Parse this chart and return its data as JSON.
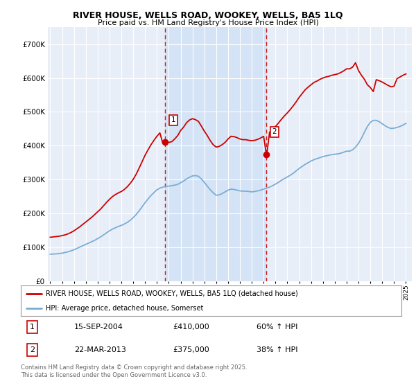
{
  "title": "RIVER HOUSE, WELLS ROAD, WOOKEY, WELLS, BA5 1LQ",
  "subtitle": "Price paid vs. HM Land Registry's House Price Index (HPI)",
  "background_color": "#ffffff",
  "plot_bg_color": "#e8eef8",
  "grid_color": "#ffffff",
  "hpi_line_color": "#7aadd4",
  "property_line_color": "#cc0000",
  "shade_color": "#d4e3f5",
  "sale1_date_num": 2004.71,
  "sale2_date_num": 2013.22,
  "sale1_price": 410000,
  "sale2_price": 375000,
  "sale1_label": "15-SEP-2004",
  "sale2_label": "22-MAR-2013",
  "sale1_pct": "60% ↑ HPI",
  "sale2_pct": "38% ↑ HPI",
  "legend_property": "RIVER HOUSE, WELLS ROAD, WOOKEY, WELLS, BA5 1LQ (detached house)",
  "legend_hpi": "HPI: Average price, detached house, Somerset",
  "footer": "Contains HM Land Registry data © Crown copyright and database right 2025.\nThis data is licensed under the Open Government Licence v3.0.",
  "ylim": [
    0,
    750000
  ],
  "xlim": [
    1994.8,
    2025.5
  ],
  "hpi_data_x": [
    1995.0,
    1995.25,
    1995.5,
    1995.75,
    1996.0,
    1996.25,
    1996.5,
    1996.75,
    1997.0,
    1997.25,
    1997.5,
    1997.75,
    1998.0,
    1998.25,
    1998.5,
    1998.75,
    1999.0,
    1999.25,
    1999.5,
    1999.75,
    2000.0,
    2000.25,
    2000.5,
    2000.75,
    2001.0,
    2001.25,
    2001.5,
    2001.75,
    2002.0,
    2002.25,
    2002.5,
    2002.75,
    2003.0,
    2003.25,
    2003.5,
    2003.75,
    2004.0,
    2004.25,
    2004.5,
    2004.75,
    2005.0,
    2005.25,
    2005.5,
    2005.75,
    2006.0,
    2006.25,
    2006.5,
    2006.75,
    2007.0,
    2007.25,
    2007.5,
    2007.75,
    2008.0,
    2008.25,
    2008.5,
    2008.75,
    2009.0,
    2009.25,
    2009.5,
    2009.75,
    2010.0,
    2010.25,
    2010.5,
    2010.75,
    2011.0,
    2011.25,
    2011.5,
    2011.75,
    2012.0,
    2012.25,
    2012.5,
    2012.75,
    2013.0,
    2013.25,
    2013.5,
    2013.75,
    2014.0,
    2014.25,
    2014.5,
    2014.75,
    2015.0,
    2015.25,
    2015.5,
    2015.75,
    2016.0,
    2016.25,
    2016.5,
    2016.75,
    2017.0,
    2017.25,
    2017.5,
    2017.75,
    2018.0,
    2018.25,
    2018.5,
    2018.75,
    2019.0,
    2019.25,
    2019.5,
    2019.75,
    2020.0,
    2020.25,
    2020.5,
    2020.75,
    2021.0,
    2021.25,
    2021.5,
    2021.75,
    2022.0,
    2022.25,
    2022.5,
    2022.75,
    2023.0,
    2023.25,
    2023.5,
    2023.75,
    2024.0,
    2024.25,
    2024.5,
    2024.75,
    2025.0
  ],
  "hpi_data_y": [
    80000,
    80500,
    81000,
    82000,
    83000,
    85000,
    87000,
    90000,
    93000,
    97000,
    101000,
    105000,
    109000,
    113000,
    117000,
    121000,
    126000,
    131000,
    137000,
    143000,
    149000,
    154000,
    158000,
    162000,
    165000,
    169000,
    174000,
    180000,
    188000,
    197000,
    208000,
    220000,
    232000,
    243000,
    253000,
    262000,
    270000,
    275000,
    278000,
    280000,
    281000,
    282000,
    284000,
    286000,
    291000,
    296000,
    302000,
    307000,
    311000,
    312000,
    310000,
    302000,
    292000,
    281000,
    270000,
    261000,
    254000,
    255000,
    259000,
    264000,
    269000,
    272000,
    271000,
    269000,
    267000,
    266000,
    266000,
    265000,
    264000,
    265000,
    267000,
    269000,
    272000,
    275000,
    278000,
    282000,
    287000,
    292000,
    298000,
    303000,
    308000,
    313000,
    319000,
    326000,
    333000,
    339000,
    345000,
    350000,
    355000,
    359000,
    362000,
    365000,
    368000,
    370000,
    372000,
    374000,
    375000,
    376000,
    378000,
    381000,
    384000,
    384000,
    388000,
    396000,
    407000,
    422000,
    440000,
    457000,
    469000,
    475000,
    475000,
    471000,
    465000,
    459000,
    454000,
    451000,
    452000,
    454000,
    457000,
    461000,
    466000
  ],
  "prop_data_x": [
    1995.0,
    1995.25,
    1995.5,
    1995.75,
    1996.0,
    1996.25,
    1996.5,
    1996.75,
    1997.0,
    1997.25,
    1997.5,
    1997.75,
    1998.0,
    1998.25,
    1998.5,
    1998.75,
    1999.0,
    1999.25,
    1999.5,
    1999.75,
    2000.0,
    2000.25,
    2000.5,
    2000.75,
    2001.0,
    2001.25,
    2001.5,
    2001.75,
    2002.0,
    2002.25,
    2002.5,
    2002.75,
    2003.0,
    2003.25,
    2003.5,
    2003.75,
    2004.0,
    2004.25,
    2004.5,
    2004.75,
    2005.0,
    2005.25,
    2005.5,
    2005.75,
    2006.0,
    2006.25,
    2006.5,
    2006.75,
    2007.0,
    2007.25,
    2007.5,
    2007.75,
    2008.0,
    2008.25,
    2008.5,
    2008.75,
    2009.0,
    2009.25,
    2009.5,
    2009.75,
    2010.0,
    2010.25,
    2010.5,
    2010.75,
    2011.0,
    2011.25,
    2011.5,
    2011.75,
    2012.0,
    2012.25,
    2012.5,
    2012.75,
    2013.0,
    2013.25,
    2013.5,
    2013.75,
    2014.0,
    2014.25,
    2014.5,
    2014.75,
    2015.0,
    2015.25,
    2015.5,
    2015.75,
    2016.0,
    2016.25,
    2016.5,
    2016.75,
    2017.0,
    2017.25,
    2017.5,
    2017.75,
    2018.0,
    2018.25,
    2018.5,
    2018.75,
    2019.0,
    2019.25,
    2019.5,
    2019.75,
    2020.0,
    2020.25,
    2020.5,
    2020.75,
    2021.0,
    2021.25,
    2021.5,
    2021.75,
    2022.0,
    2022.25,
    2022.5,
    2022.75,
    2023.0,
    2023.25,
    2023.5,
    2023.75,
    2024.0,
    2024.25,
    2024.5,
    2024.75,
    2025.0
  ],
  "prop_data_y": [
    130000,
    131000,
    132000,
    133000,
    135000,
    137000,
    140000,
    144000,
    149000,
    155000,
    161000,
    168000,
    175000,
    182000,
    189000,
    197000,
    205000,
    213000,
    223000,
    233000,
    242000,
    250000,
    256000,
    261000,
    265000,
    271000,
    279000,
    289000,
    301000,
    316000,
    334000,
    353000,
    372000,
    388000,
    403000,
    416000,
    428000,
    438000,
    407000,
    410000,
    410000,
    412000,
    420000,
    430000,
    445000,
    455000,
    468000,
    476000,
    480000,
    477000,
    472000,
    458000,
    443000,
    430000,
    415000,
    403000,
    396000,
    398000,
    403000,
    410000,
    420000,
    428000,
    427000,
    424000,
    420000,
    418000,
    418000,
    416000,
    415000,
    416000,
    419000,
    423000,
    428000,
    370000,
    440000,
    448000,
    457000,
    467000,
    478000,
    488000,
    497000,
    507000,
    518000,
    530000,
    543000,
    554000,
    565000,
    573000,
    580000,
    587000,
    591000,
    596000,
    600000,
    603000,
    605000,
    608000,
    610000,
    612000,
    616000,
    621000,
    627000,
    627000,
    632000,
    645000,
    622000,
    608000,
    596000,
    580000,
    572000,
    560000,
    595000,
    592000,
    588000,
    583000,
    578000,
    574000,
    576000,
    598000,
    603000,
    608000,
    612000
  ]
}
